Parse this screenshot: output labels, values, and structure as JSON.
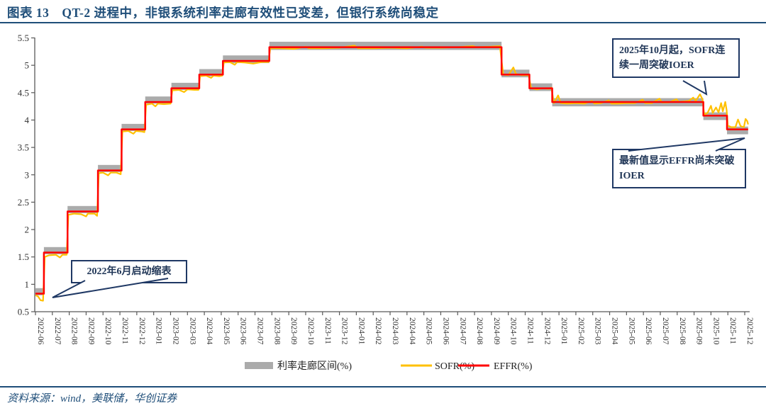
{
  "title": "图表 13　QT-2 进程中，非银系统利率走廊有效性已变差，但银行系统尚稳定",
  "source": "资料来源：wind，美联储，华创证券",
  "annotations": {
    "taper": "2022年6月启动缩表",
    "sofr_break": "2025年10月起，SOFR连续一周突破IOER",
    "effr_hold": "最新值显示EFFR尚未突破IOER"
  },
  "legend": [
    {
      "label": "利率走廊区间(%)",
      "type": "band",
      "color": "#ABABAB"
    },
    {
      "label": "SOFR(%)",
      "type": "line",
      "color": "#FFC000"
    },
    {
      "label": "EFFR(%)",
      "type": "line",
      "color": "#FF0000"
    }
  ],
  "colors": {
    "band": "#ABABAB",
    "sofr": "#FFC000",
    "effr": "#FF0000",
    "axis": "#595959",
    "tick_text": "#333333",
    "accent_navy": "#1F3864",
    "title_navy": "#1F4E79"
  },
  "chart_data": {
    "type": "line",
    "title": "",
    "xlabel": "",
    "ylabel": "",
    "ylim": [
      0.5,
      5.5
    ],
    "ytick_labels": [
      "0.5",
      "1",
      "1.5",
      "2",
      "2.5",
      "3",
      "3.5",
      "4",
      "4.5",
      "5",
      "5.5"
    ],
    "x_labels": [
      "2022-06",
      "2022-07",
      "2022-08",
      "2022-09",
      "2022-10",
      "2022-11",
      "2022-12",
      "2023-01",
      "2023-02",
      "2023-03",
      "2023-04",
      "2023-05",
      "2023-06",
      "2023-07",
      "2023-08",
      "2023-09",
      "2023-10",
      "2023-11",
      "2023-12",
      "2024-01",
      "2024-02",
      "2024-03",
      "2024-04",
      "2024-05",
      "2024-06",
      "2024-07",
      "2024-08",
      "2024-09",
      "2024-10",
      "2024-11",
      "2024-12",
      "2025-01",
      "2025-02",
      "2025-03",
      "2025-04",
      "2025-05",
      "2025-06",
      "2025-07",
      "2025-08",
      "2025-09",
      "2025-10",
      "2025-11",
      "2025-12"
    ],
    "grid": false,
    "legend_position": "bottom",
    "corridor_steps": [
      {
        "from": 0,
        "to": 0.5,
        "level": 0.83,
        "band": [
          -0.03,
          0.1
        ]
      },
      {
        "from": 0.5,
        "to": 1.9,
        "level": 1.58,
        "band": [
          -0.03,
          0.1
        ]
      },
      {
        "from": 1.9,
        "to": 3.7,
        "level": 2.33,
        "band": [
          -0.03,
          0.1
        ]
      },
      {
        "from": 3.7,
        "to": 5.1,
        "level": 3.08,
        "band": [
          -0.03,
          0.1
        ]
      },
      {
        "from": 5.1,
        "to": 6.5,
        "level": 3.83,
        "band": [
          -0.03,
          0.1
        ]
      },
      {
        "from": 6.5,
        "to": 8.05,
        "level": 4.33,
        "band": [
          -0.03,
          0.1
        ]
      },
      {
        "from": 8.05,
        "to": 9.7,
        "level": 4.58,
        "band": [
          -0.03,
          0.1
        ]
      },
      {
        "from": 9.7,
        "to": 11.1,
        "level": 4.83,
        "band": [
          -0.03,
          0.1
        ]
      },
      {
        "from": 11.1,
        "to": 13.85,
        "level": 5.08,
        "band": [
          -0.04,
          0.1
        ]
      },
      {
        "from": 13.85,
        "to": 27.6,
        "level": 5.33,
        "band": [
          -0.05,
          0.1
        ]
      },
      {
        "from": 27.6,
        "to": 29.25,
        "level": 4.83,
        "band": [
          -0.05,
          0.09
        ]
      },
      {
        "from": 29.25,
        "to": 30.6,
        "level": 4.58,
        "band": [
          -0.05,
          0.09
        ]
      },
      {
        "from": 30.6,
        "to": 39.55,
        "level": 4.33,
        "band": [
          -0.08,
          0.07
        ]
      },
      {
        "from": 39.55,
        "to": 40.95,
        "level": 4.08,
        "band": [
          -0.08,
          0.06
        ]
      },
      {
        "from": 40.95,
        "to": 42.2,
        "level": 3.83,
        "band": [
          -0.09,
          0.05
        ]
      }
    ],
    "sofr": [
      [
        0,
        0.8
      ],
      [
        0.15,
        0.78
      ],
      [
        0.3,
        0.71
      ],
      [
        0.45,
        0.7
      ],
      [
        0.55,
        1.5
      ],
      [
        0.8,
        1.53
      ],
      [
        1.2,
        1.54
      ],
      [
        1.45,
        1.49
      ],
      [
        1.6,
        1.54
      ],
      [
        1.85,
        1.54
      ],
      [
        1.95,
        2.27
      ],
      [
        2.3,
        2.29
      ],
      [
        2.7,
        2.28
      ],
      [
        3,
        2.24
      ],
      [
        3.1,
        2.29
      ],
      [
        3.5,
        2.29
      ],
      [
        3.65,
        2.25
      ],
      [
        3.75,
        3.03
      ],
      [
        4,
        3.04
      ],
      [
        4.3,
        2.99
      ],
      [
        4.45,
        3.04
      ],
      [
        4.8,
        3.04
      ],
      [
        5.05,
        3.01
      ],
      [
        5.15,
        3.79
      ],
      [
        5.5,
        3.8
      ],
      [
        5.8,
        3.75
      ],
      [
        5.95,
        3.8
      ],
      [
        6.3,
        3.79
      ],
      [
        6.45,
        3.78
      ],
      [
        6.55,
        4.28
      ],
      [
        6.9,
        4.3
      ],
      [
        7.1,
        4.25
      ],
      [
        7.25,
        4.3
      ],
      [
        7.6,
        4.29
      ],
      [
        8,
        4.3
      ],
      [
        8.1,
        4.54
      ],
      [
        8.5,
        4.55
      ],
      [
        8.8,
        4.51
      ],
      [
        9,
        4.56
      ],
      [
        9.4,
        4.55
      ],
      [
        9.65,
        4.55
      ],
      [
        9.75,
        4.8
      ],
      [
        10.1,
        4.81
      ],
      [
        10.4,
        4.77
      ],
      [
        10.55,
        4.81
      ],
      [
        10.9,
        4.8
      ],
      [
        11.05,
        4.81
      ],
      [
        11.15,
        5.05
      ],
      [
        11.5,
        5.06
      ],
      [
        11.8,
        5.01
      ],
      [
        11.95,
        5.06
      ],
      [
        12.4,
        5.05
      ],
      [
        12.9,
        5.03
      ],
      [
        13.4,
        5.06
      ],
      [
        13.8,
        5.06
      ],
      [
        13.9,
        5.31
      ],
      [
        14.5,
        5.31
      ],
      [
        15.3,
        5.3
      ],
      [
        16,
        5.34
      ],
      [
        16.2,
        5.31
      ],
      [
        17,
        5.31
      ],
      [
        18,
        5.32
      ],
      [
        18.9,
        5.36
      ],
      [
        19.1,
        5.31
      ],
      [
        20,
        5.31
      ],
      [
        21,
        5.32
      ],
      [
        22,
        5.31
      ],
      [
        22.9,
        5.34
      ],
      [
        23.1,
        5.32
      ],
      [
        24,
        5.32
      ],
      [
        25,
        5.33
      ],
      [
        25.9,
        5.35
      ],
      [
        26.1,
        5.33
      ],
      [
        27,
        5.34
      ],
      [
        27.5,
        5.35
      ],
      [
        27.7,
        4.83
      ],
      [
        28,
        4.82
      ],
      [
        28.3,
        4.96
      ],
      [
        28.45,
        4.84
      ],
      [
        28.8,
        4.82
      ],
      [
        29.2,
        4.82
      ],
      [
        29.35,
        4.58
      ],
      [
        29.7,
        4.56
      ],
      [
        30,
        4.58
      ],
      [
        30.4,
        4.57
      ],
      [
        30.55,
        4.59
      ],
      [
        30.7,
        4.31
      ],
      [
        30.95,
        4.45
      ],
      [
        31.1,
        4.31
      ],
      [
        31.5,
        4.3
      ],
      [
        32,
        4.31
      ],
      [
        32.5,
        4.3
      ],
      [
        32.95,
        4.35
      ],
      [
        33.1,
        4.3
      ],
      [
        33.5,
        4.31
      ],
      [
        33.95,
        4.36
      ],
      [
        34.1,
        4.3
      ],
      [
        34.5,
        4.3
      ],
      [
        35,
        4.31
      ],
      [
        35.5,
        4.31
      ],
      [
        35.95,
        4.37
      ],
      [
        36.1,
        4.31
      ],
      [
        36.5,
        4.31
      ],
      [
        36.95,
        4.39
      ],
      [
        37.1,
        4.32
      ],
      [
        37.5,
        4.32
      ],
      [
        37.95,
        4.38
      ],
      [
        38.1,
        4.33
      ],
      [
        38.4,
        4.34
      ],
      [
        38.7,
        4.35
      ],
      [
        38.95,
        4.41
      ],
      [
        39.1,
        4.35
      ],
      [
        39.35,
        4.47
      ],
      [
        39.5,
        4.38
      ],
      [
        39.6,
        4.1
      ],
      [
        39.8,
        4.13
      ],
      [
        40,
        4.26
      ],
      [
        40.1,
        4.13
      ],
      [
        40.3,
        4.23
      ],
      [
        40.45,
        4.14
      ],
      [
        40.6,
        4.31
      ],
      [
        40.7,
        4.16
      ],
      [
        40.85,
        4.33
      ],
      [
        40.93,
        4.18
      ],
      [
        41,
        3.9
      ],
      [
        41.2,
        3.87
      ],
      [
        41.45,
        3.87
      ],
      [
        41.6,
        4.01
      ],
      [
        41.75,
        3.89
      ],
      [
        41.95,
        3.87
      ],
      [
        42.05,
        4.02
      ],
      [
        42.15,
        3.98
      ],
      [
        42.2,
        3.92
      ]
    ]
  }
}
